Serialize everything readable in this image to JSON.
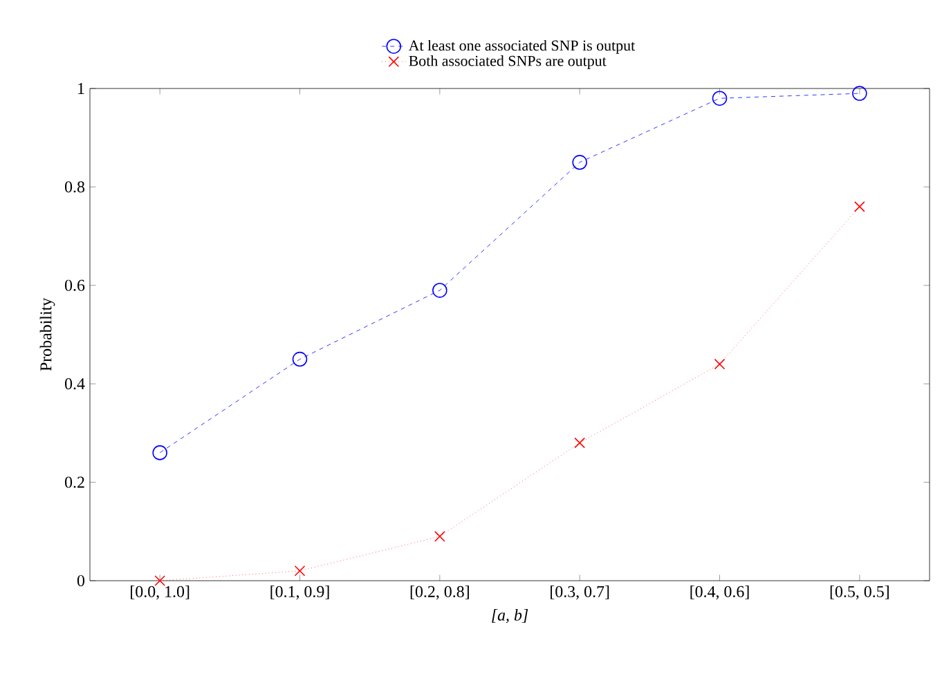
{
  "chart_data": {
    "type": "line",
    "xlabel": "[a, b]",
    "ylabel": "Probability",
    "categories": [
      "[0.0, 1.0]",
      "[0.1, 0.9]",
      "[0.2, 0.8]",
      "[0.3, 0.7]",
      "[0.4, 0.6]",
      "[0.5, 0.5]"
    ],
    "series": [
      {
        "name": "At least one associated SNP is output",
        "color": "#0000ff",
        "marker": "circle",
        "line_style": "dashed",
        "values": [
          0.26,
          0.45,
          0.59,
          0.85,
          0.98,
          0.99
        ]
      },
      {
        "name": "Both associated SNPs are output",
        "color": "#ff0000",
        "marker": "cross",
        "line_style": "dotted",
        "values": [
          0.0,
          0.02,
          0.09,
          0.28,
          0.44,
          0.76
        ]
      }
    ],
    "ylim": [
      0,
      1
    ],
    "yticks": [
      0,
      0.2,
      0.4,
      0.6,
      0.8,
      1
    ],
    "grid": false,
    "legend": "top"
  }
}
